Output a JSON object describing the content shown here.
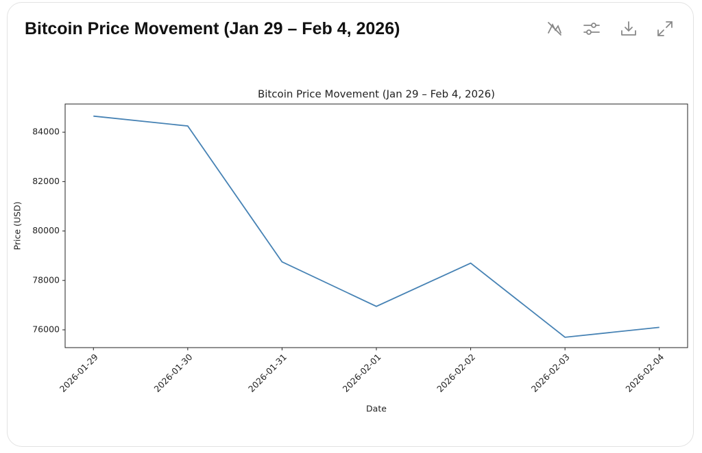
{
  "header": {
    "title": "Bitcoin Price Movement (Jan 29 – Feb 4, 2026)"
  },
  "chart_data": {
    "type": "line",
    "title": "Bitcoin Price Movement (Jan 29 – Feb 4, 2026)",
    "x_label": "Date",
    "y_label": "Price (USD)",
    "categories": [
      "2026-01-29",
      "2026-01-30",
      "2026-01-31",
      "2026-02-01",
      "2026-02-02",
      "2026-02-03",
      "2026-02-04"
    ],
    "values": [
      84650,
      84250,
      78750,
      76950,
      78700,
      75700,
      76100
    ],
    "color": "#4682b4",
    "ylim": [
      75280,
      85140
    ],
    "yticks": [
      76000,
      78000,
      80000,
      82000,
      84000
    ],
    "grid": false
  }
}
